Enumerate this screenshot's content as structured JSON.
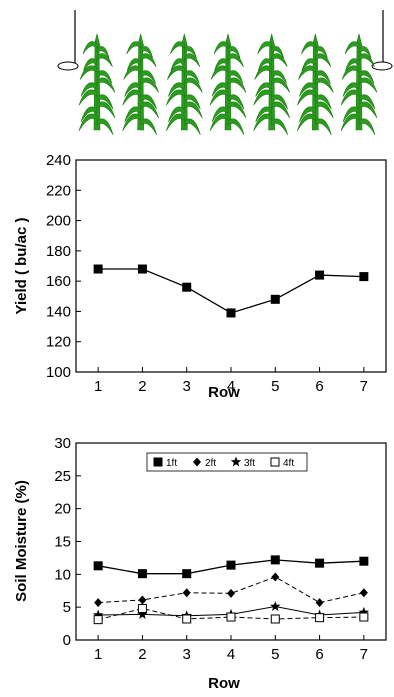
{
  "chart_data": [
    {
      "type": "line",
      "x": [
        1,
        2,
        3,
        4,
        5,
        6,
        7
      ],
      "xlabel": "Row",
      "ylabel": "Yield ( bu/ac )",
      "ylim": [
        100,
        240
      ],
      "xticks": [
        1,
        2,
        3,
        4,
        5,
        6,
        7
      ],
      "yticks": [
        100,
        120,
        140,
        160,
        180,
        200,
        220,
        240
      ],
      "grid": false,
      "legend": "none",
      "series": [
        {
          "values": [
            168,
            168,
            156,
            139,
            148,
            164,
            163
          ],
          "marker": "square",
          "line": "solid"
        }
      ]
    },
    {
      "type": "line",
      "x": [
        1,
        2,
        3,
        4,
        5,
        6,
        7
      ],
      "xlabel": "Row",
      "ylabel": "Soil Moisture (%)",
      "ylim": [
        0,
        30
      ],
      "xticks": [
        1,
        2,
        3,
        4,
        5,
        6,
        7
      ],
      "yticks": [
        0,
        5,
        10,
        15,
        20,
        25,
        30
      ],
      "grid": false,
      "legend": "top-center",
      "series": [
        {
          "name": "1ft",
          "values": [
            11.3,
            10.1,
            10.1,
            11.4,
            12.2,
            11.7,
            12.0
          ],
          "marker": "square",
          "line": "solid"
        },
        {
          "name": "2ft",
          "values": [
            5.7,
            6.1,
            7.2,
            7.1,
            9.6,
            5.7,
            7.2
          ],
          "marker": "diamond",
          "line": "dashed"
        },
        {
          "name": "3ft",
          "values": [
            3.8,
            3.9,
            3.7,
            3.9,
            5.1,
            3.8,
            4.2
          ],
          "marker": "star",
          "line": "solid"
        },
        {
          "name": "4ft",
          "values": [
            3.1,
            4.8,
            3.2,
            3.5,
            3.2,
            3.4,
            3.5
          ],
          "marker": "open-square",
          "line": "dashed"
        }
      ]
    }
  ],
  "illustration": {
    "plant_icon": "corn-plant-icon",
    "plant_count": 7,
    "plant_color": "#2a9c1e"
  }
}
